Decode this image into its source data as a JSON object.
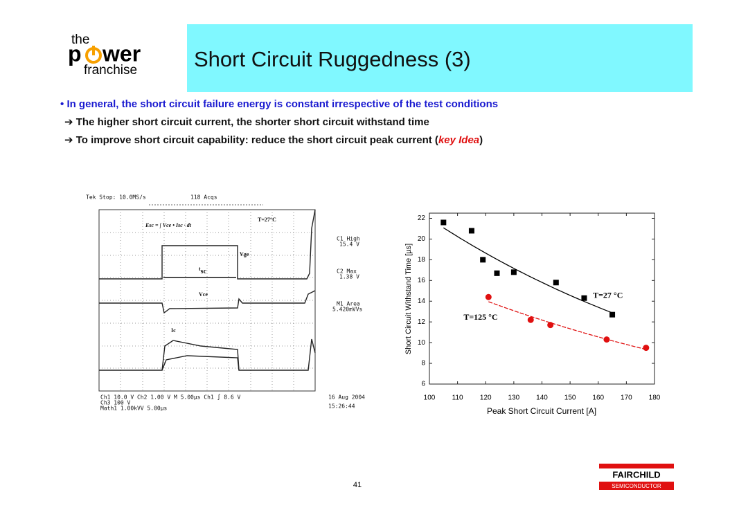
{
  "header": {
    "logo": {
      "top": "the",
      "p": "p",
      "wer": "wer",
      "bottom": "franchise"
    },
    "title": "Short Circuit Ruggedness (3)"
  },
  "bullets": [
    {
      "marker": "•",
      "text": "In general, the short circuit failure energy is constant irrespective of the test conditions"
    },
    {
      "marker": "➔",
      "text": "The higher short circuit current, the shorter short circuit withstand time"
    },
    {
      "marker": "➔",
      "parts": [
        "To improve short circuit capability: reduce the short circuit peak current (",
        "key Idea",
        ")"
      ]
    }
  ],
  "scope": {
    "top_left": "Tek Stop: 10.0MS/s",
    "acqs": "118 Acqs",
    "formula": "Esc = ∫ Vce • Isc · dt",
    "temperature": "T=27°C",
    "vge": "Vge",
    "tsc_t": "t",
    "tsc_sub": "sc",
    "vce": "Vce",
    "ic": "Ic",
    "readouts": [
      [
        "C1 High",
        "15.4 V"
      ],
      [
        "C2 Max",
        "1.38 V"
      ],
      [
        "M1 Area",
        "5.420mVVs"
      ]
    ],
    "bottom": [
      "Ch1  10.0 V    Ch2   1.00 V  M 5.00µs  Ch1 ∫  8.6 V",
      "Ch3  100 V",
      "Math1  1.00kVV    5.00µs"
    ],
    "date": "16 Aug 2004",
    "time": "15:26:44"
  },
  "chart_data": {
    "type": "scatter",
    "xlabel": "Peak Short Circuit Current [A]",
    "ylabel": "Short Circuit Withstand Time [µs]",
    "xlim": [
      100,
      180
    ],
    "xticks": [
      100,
      110,
      120,
      130,
      140,
      150,
      160,
      170,
      180
    ],
    "ylim": [
      6,
      22.5
    ],
    "yticks": [
      6,
      8,
      10,
      12,
      14,
      16,
      18,
      20,
      22
    ],
    "series": [
      {
        "name": "T=27 °C",
        "color": "#000000",
        "marker": "square",
        "x": [
          105,
          115,
          119,
          124,
          130,
          145,
          155,
          165
        ],
        "values": [
          21.6,
          20.8,
          18.0,
          16.7,
          16.8,
          15.8,
          14.3,
          12.7
        ]
      },
      {
        "name": "T=125 °C",
        "color": "#e01010",
        "marker": "circle",
        "x": [
          121,
          136,
          143,
          163,
          177
        ],
        "values": [
          14.4,
          12.2,
          11.7,
          10.3,
          9.5
        ]
      }
    ]
  },
  "footer": {
    "page": "41",
    "brand": "FAIRCHILD",
    "sub": "SEMICONDUCTOR"
  }
}
